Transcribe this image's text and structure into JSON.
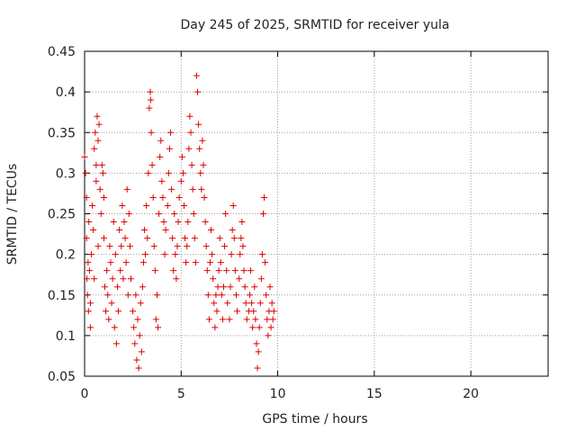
{
  "chart_data": {
    "type": "scatter",
    "title": "Day 245 of 2025, SRMTID for receiver yula",
    "xlabel": "GPS time / hours",
    "ylabel": "SRMTID / TECUs",
    "xlim": [
      0,
      24
    ],
    "ylim": [
      0.05,
      0.45
    ],
    "x_ticks": [
      0,
      5,
      10,
      15,
      20
    ],
    "y_ticks": [
      0.05,
      0.1,
      0.15,
      0.2,
      0.25,
      0.3,
      0.35,
      0.4,
      0.45
    ],
    "x_tick_labels": [
      "0",
      "5",
      "10",
      "15",
      "20"
    ],
    "y_tick_labels": [
      "0.05",
      "0.1",
      "0.15",
      "0.2",
      "0.25",
      "0.3",
      "0.35",
      "0.4",
      "0.45"
    ],
    "grid": true,
    "marker": "+",
    "marker_color": "#e00000",
    "series": [
      {
        "points": [
          [
            0.0,
            0.32
          ],
          [
            0.05,
            0.3
          ],
          [
            0.1,
            0.27
          ],
          [
            0.1,
            0.22
          ],
          [
            0.12,
            0.17
          ],
          [
            0.15,
            0.15
          ],
          [
            0.18,
            0.19
          ],
          [
            0.2,
            0.13
          ],
          [
            0.22,
            0.24
          ],
          [
            0.25,
            0.18
          ],
          [
            0.3,
            0.14
          ],
          [
            0.3,
            0.11
          ],
          [
            0.35,
            0.2
          ],
          [
            0.4,
            0.26
          ],
          [
            0.45,
            0.23
          ],
          [
            0.5,
            0.17
          ],
          [
            0.5,
            0.33
          ],
          [
            0.55,
            0.35
          ],
          [
            0.6,
            0.31
          ],
          [
            0.6,
            0.29
          ],
          [
            0.65,
            0.37
          ],
          [
            0.7,
            0.34
          ],
          [
            0.7,
            0.21
          ],
          [
            0.75,
            0.36
          ],
          [
            0.8,
            0.28
          ],
          [
            0.85,
            0.25
          ],
          [
            0.9,
            0.31
          ],
          [
            0.95,
            0.3
          ],
          [
            1.0,
            0.27
          ],
          [
            1.0,
            0.22
          ],
          [
            1.05,
            0.16
          ],
          [
            1.1,
            0.13
          ],
          [
            1.15,
            0.18
          ],
          [
            1.2,
            0.15
          ],
          [
            1.25,
            0.12
          ],
          [
            1.3,
            0.21
          ],
          [
            1.35,
            0.19
          ],
          [
            1.4,
            0.14
          ],
          [
            1.45,
            0.17
          ],
          [
            1.5,
            0.24
          ],
          [
            1.55,
            0.11
          ],
          [
            1.6,
            0.2
          ],
          [
            1.65,
            0.09
          ],
          [
            1.7,
            0.16
          ],
          [
            1.75,
            0.13
          ],
          [
            1.8,
            0.23
          ],
          [
            1.85,
            0.18
          ],
          [
            1.9,
            0.21
          ],
          [
            1.95,
            0.26
          ],
          [
            2.0,
            0.17
          ],
          [
            2.05,
            0.24
          ],
          [
            2.1,
            0.22
          ],
          [
            2.15,
            0.19
          ],
          [
            2.2,
            0.28
          ],
          [
            2.25,
            0.15
          ],
          [
            2.3,
            0.25
          ],
          [
            2.35,
            0.21
          ],
          [
            2.4,
            0.17
          ],
          [
            2.5,
            0.13
          ],
          [
            2.55,
            0.11
          ],
          [
            2.6,
            0.09
          ],
          [
            2.65,
            0.15
          ],
          [
            2.7,
            0.07
          ],
          [
            2.75,
            0.12
          ],
          [
            2.8,
            0.06
          ],
          [
            2.85,
            0.1
          ],
          [
            2.9,
            0.14
          ],
          [
            2.95,
            0.08
          ],
          [
            3.0,
            0.16
          ],
          [
            3.05,
            0.19
          ],
          [
            3.1,
            0.23
          ],
          [
            3.15,
            0.2
          ],
          [
            3.2,
            0.26
          ],
          [
            3.25,
            0.22
          ],
          [
            3.3,
            0.3
          ],
          [
            3.35,
            0.38
          ],
          [
            3.4,
            0.4
          ],
          [
            3.42,
            0.39
          ],
          [
            3.45,
            0.35
          ],
          [
            3.5,
            0.31
          ],
          [
            3.55,
            0.27
          ],
          [
            3.6,
            0.21
          ],
          [
            3.65,
            0.18
          ],
          [
            3.7,
            0.12
          ],
          [
            3.75,
            0.15
          ],
          [
            3.8,
            0.11
          ],
          [
            3.85,
            0.25
          ],
          [
            3.9,
            0.32
          ],
          [
            3.95,
            0.34
          ],
          [
            4.0,
            0.29
          ],
          [
            4.05,
            0.27
          ],
          [
            4.1,
            0.24
          ],
          [
            4.15,
            0.2
          ],
          [
            4.2,
            0.23
          ],
          [
            4.3,
            0.26
          ],
          [
            4.35,
            0.3
          ],
          [
            4.4,
            0.33
          ],
          [
            4.45,
            0.35
          ],
          [
            4.5,
            0.28
          ],
          [
            4.55,
            0.22
          ],
          [
            4.6,
            0.18
          ],
          [
            4.65,
            0.25
          ],
          [
            4.7,
            0.2
          ],
          [
            4.75,
            0.17
          ],
          [
            4.8,
            0.21
          ],
          [
            4.85,
            0.24
          ],
          [
            4.9,
            0.27
          ],
          [
            5.0,
            0.29
          ],
          [
            5.05,
            0.32
          ],
          [
            5.1,
            0.3
          ],
          [
            5.15,
            0.26
          ],
          [
            5.2,
            0.22
          ],
          [
            5.25,
            0.19
          ],
          [
            5.3,
            0.21
          ],
          [
            5.35,
            0.24
          ],
          [
            5.4,
            0.33
          ],
          [
            5.45,
            0.37
          ],
          [
            5.5,
            0.35
          ],
          [
            5.55,
            0.31
          ],
          [
            5.6,
            0.28
          ],
          [
            5.65,
            0.25
          ],
          [
            5.7,
            0.22
          ],
          [
            5.75,
            0.19
          ],
          [
            5.8,
            0.42
          ],
          [
            5.85,
            0.4
          ],
          [
            5.9,
            0.36
          ],
          [
            5.95,
            0.33
          ],
          [
            6.0,
            0.3
          ],
          [
            6.05,
            0.28
          ],
          [
            6.1,
            0.34
          ],
          [
            6.15,
            0.31
          ],
          [
            6.2,
            0.27
          ],
          [
            6.25,
            0.24
          ],
          [
            6.3,
            0.21
          ],
          [
            6.35,
            0.18
          ],
          [
            6.4,
            0.15
          ],
          [
            6.45,
            0.12
          ],
          [
            6.5,
            0.19
          ],
          [
            6.55,
            0.23
          ],
          [
            6.6,
            0.2
          ],
          [
            6.65,
            0.17
          ],
          [
            6.7,
            0.14
          ],
          [
            6.75,
            0.11
          ],
          [
            6.8,
            0.15
          ],
          [
            6.85,
            0.13
          ],
          [
            6.9,
            0.16
          ],
          [
            6.95,
            0.18
          ],
          [
            7.0,
            0.22
          ],
          [
            7.05,
            0.19
          ],
          [
            7.1,
            0.15
          ],
          [
            7.15,
            0.12
          ],
          [
            7.2,
            0.16
          ],
          [
            7.25,
            0.21
          ],
          [
            7.3,
            0.25
          ],
          [
            7.35,
            0.18
          ],
          [
            7.4,
            0.14
          ],
          [
            7.5,
            0.12
          ],
          [
            7.55,
            0.16
          ],
          [
            7.6,
            0.2
          ],
          [
            7.65,
            0.23
          ],
          [
            7.7,
            0.26
          ],
          [
            7.75,
            0.22
          ],
          [
            7.8,
            0.18
          ],
          [
            7.85,
            0.15
          ],
          [
            7.9,
            0.13
          ],
          [
            8.0,
            0.17
          ],
          [
            8.05,
            0.2
          ],
          [
            8.1,
            0.22
          ],
          [
            8.15,
            0.24
          ],
          [
            8.2,
            0.21
          ],
          [
            8.25,
            0.18
          ],
          [
            8.3,
            0.16
          ],
          [
            8.35,
            0.14
          ],
          [
            8.4,
            0.12
          ],
          [
            8.5,
            0.13
          ],
          [
            8.55,
            0.15
          ],
          [
            8.6,
            0.18
          ],
          [
            8.65,
            0.14
          ],
          [
            8.7,
            0.11
          ],
          [
            8.75,
            0.13
          ],
          [
            8.8,
            0.16
          ],
          [
            8.85,
            0.12
          ],
          [
            8.9,
            0.09
          ],
          [
            8.95,
            0.06
          ],
          [
            9.0,
            0.08
          ],
          [
            9.05,
            0.11
          ],
          [
            9.1,
            0.14
          ],
          [
            9.15,
            0.17
          ],
          [
            9.2,
            0.2
          ],
          [
            9.25,
            0.25
          ],
          [
            9.3,
            0.27
          ],
          [
            9.35,
            0.19
          ],
          [
            9.4,
            0.15
          ],
          [
            9.45,
            0.12
          ],
          [
            9.5,
            0.1
          ],
          [
            9.55,
            0.13
          ],
          [
            9.6,
            0.16
          ],
          [
            9.65,
            0.11
          ],
          [
            9.7,
            0.14
          ],
          [
            9.75,
            0.12
          ],
          [
            9.8,
            0.13
          ]
        ]
      }
    ]
  }
}
